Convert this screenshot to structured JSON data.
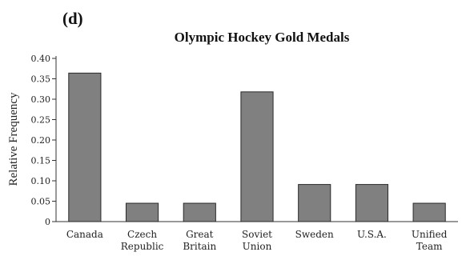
{
  "panel_label": "(d)",
  "chart_data": {
    "type": "bar",
    "title": "Olympic Hockey Gold Medals",
    "ylabel": "Relative Frequency",
    "xlabel": "",
    "ylim": [
      0,
      0.4
    ],
    "yticks": [
      "0",
      "0.05",
      "0.10",
      "0.15",
      "0.20",
      "0.25",
      "0.30",
      "0.35",
      "0.40"
    ],
    "categories": [
      [
        "Canada"
      ],
      [
        "Czech",
        "Republic"
      ],
      [
        "Great",
        "Britain"
      ],
      [
        "Soviet",
        "Union"
      ],
      [
        "Sweden"
      ],
      [
        "U.S.A."
      ],
      [
        "Unified",
        "Team"
      ]
    ],
    "values": [
      0.364,
      0.045,
      0.045,
      0.318,
      0.091,
      0.091,
      0.045
    ],
    "bar_color": "#808080",
    "grid": false
  }
}
